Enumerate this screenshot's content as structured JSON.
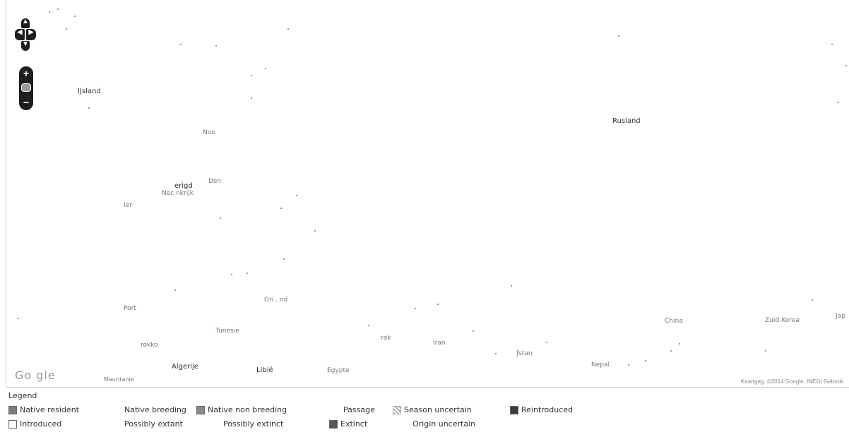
{
  "map": {
    "labels": {
      "iceland": "IJsland",
      "russia": "Rusland",
      "norway": "Noo",
      "denmark": "Den",
      "uk": "erigd",
      "netherlands": "Nec nkrijk",
      "ireland": "Ier",
      "portugal": "Port",
      "greece": "Gri . nd",
      "morocco": "rokko",
      "algeria": "Algerije",
      "libya": "Libië",
      "egypt": "Egypte",
      "iraq": "rak",
      "iran": "Iran",
      "afghanistan": "ƒstan",
      "tunisia": "Tunesie",
      "china": "China",
      "south_korea": "Zuid-Korea",
      "japan": "Jap",
      "nepal": "Nepal",
      "mauritania": "Mauritanie"
    },
    "google_logo": "Go gle",
    "attribution": "Kaartgeg.  ©2014 Google, INEGI   Gebruik"
  },
  "controls": {
    "pan_up": "▲",
    "pan_left": "◀",
    "pan_right": "▶",
    "pan_down": "▼",
    "zoom_in": "+",
    "zoom_out": "−"
  },
  "legend": {
    "title": "Legend",
    "items": [
      {
        "label": "Native resident",
        "color": "#7a7a7a"
      },
      {
        "label": "Native breeding",
        "color": ""
      },
      {
        "label": "Native non breeding",
        "color": "#8a8a8a"
      },
      {
        "label": "Passage",
        "color": ""
      },
      {
        "label": "Season uncertain",
        "color": "#b0b0b0"
      },
      {
        "label": "Reintroduced",
        "color": "#3a3a3a"
      },
      {
        "label": "Introduced",
        "color": "#ffffff"
      },
      {
        "label": "Possibly extant",
        "color": ""
      },
      {
        "label": "Possibly extinct",
        "color": ""
      },
      {
        "label": "Extinct",
        "color": "#555555"
      },
      {
        "label": "Origin uncertain",
        "color": ""
      }
    ]
  }
}
